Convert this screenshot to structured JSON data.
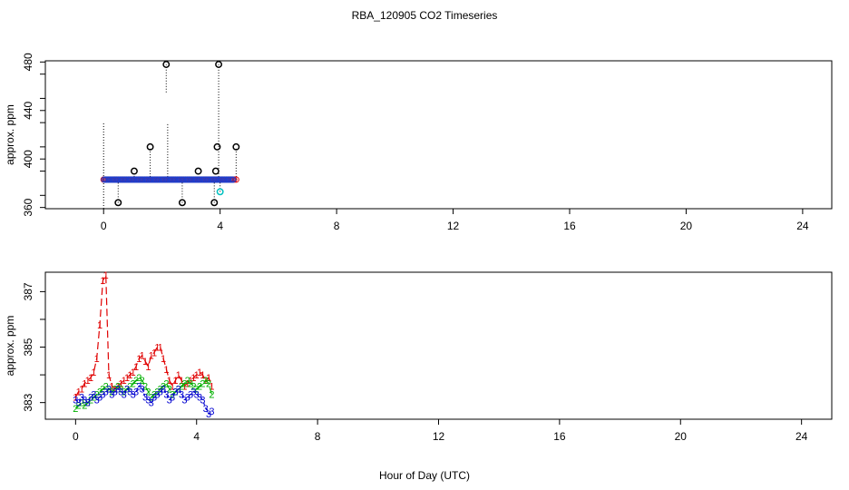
{
  "title": "RBA_120905  CO2 Timeseries",
  "xlabel": "Hour of Day (UTC)",
  "chart_data": [
    {
      "type": "scatter",
      "ylabel": "approx. ppm",
      "xlim": [
        -2,
        25
      ],
      "ylim": [
        359,
        481
      ],
      "xticks": [
        0,
        4,
        8,
        12,
        16,
        20,
        24
      ],
      "xtick_labels": [
        "0",
        "4",
        "8",
        "12",
        "16",
        "20",
        "24"
      ],
      "yticks": [
        360,
        400,
        440,
        480
      ],
      "ytick_labels": [
        "360",
        "400",
        "440",
        "480"
      ],
      "series": [
        {
          "color": "#000000",
          "marker": "open-circle",
          "points": [
            [
              0.5,
              364
            ],
            [
              1.05,
              390
            ],
            [
              1.6,
              410
            ],
            [
              2.15,
              478
            ],
            [
              2.7,
              364
            ],
            [
              3.25,
              390
            ],
            [
              3.8,
              364
            ],
            [
              3.85,
              390
            ],
            [
              3.9,
              410
            ],
            [
              3.95,
              478
            ],
            [
              4.55,
              410
            ]
          ]
        },
        {
          "color": "#00c0c0",
          "marker": "open-circle",
          "points": [
            [
              4.0,
              373
            ]
          ]
        }
      ],
      "spikes": [
        {
          "x": 0.0,
          "from": 359,
          "to": 430
        },
        {
          "x": 0.5,
          "from": 364,
          "to": 383
        },
        {
          "x": 1.05,
          "from": 383,
          "to": 390
        },
        {
          "x": 1.6,
          "from": 383,
          "to": 410
        },
        {
          "x": 2.15,
          "from": 455,
          "to": 478
        },
        {
          "x": 2.2,
          "from": 383,
          "to": 430
        },
        {
          "x": 2.7,
          "from": 364,
          "to": 383
        },
        {
          "x": 3.8,
          "from": 364,
          "to": 383
        },
        {
          "x": 3.95,
          "from": 383,
          "to": 478
        },
        {
          "x": 4.0,
          "from": 373,
          "to": 383
        },
        {
          "x": 4.55,
          "from": 383,
          "to": 410
        }
      ],
      "baseline_value": 383
    },
    {
      "type": "line",
      "ylabel": "approx. ppm",
      "xlim": [
        -1,
        25
      ],
      "ylim": [
        382.4,
        387.7
      ],
      "xticks": [
        0,
        4,
        8,
        12,
        16,
        20,
        24
      ],
      "xtick_labels": [
        "0",
        "4",
        "8",
        "12",
        "16",
        "20",
        "24"
      ],
      "yticks": [
        383,
        385,
        387
      ],
      "ytick_labels": [
        "383",
        "385",
        "387"
      ],
      "series": [
        {
          "symbol": "1",
          "color": "#e00000",
          "dash": "8 4",
          "x": [
            0.0,
            0.1,
            0.2,
            0.3,
            0.4,
            0.5,
            0.6,
            0.7,
            0.8,
            0.9,
            1.0,
            1.1,
            1.2,
            1.3,
            1.4,
            1.5,
            1.6,
            1.7,
            1.8,
            1.9,
            2.0,
            2.1,
            2.2,
            2.3,
            2.4,
            2.5,
            2.6,
            2.7,
            2.8,
            2.9,
            3.0,
            3.1,
            3.2,
            3.3,
            3.4,
            3.5,
            3.6,
            3.7,
            3.8,
            3.9,
            4.0,
            4.1,
            4.2,
            4.3,
            4.4,
            4.5
          ],
          "y": [
            383.2,
            383.4,
            383.5,
            383.7,
            383.8,
            383.9,
            384.1,
            384.6,
            385.8,
            387.4,
            387.6,
            384.0,
            383.6,
            383.5,
            383.6,
            383.7,
            383.8,
            383.9,
            384.0,
            384.1,
            384.3,
            384.6,
            384.7,
            384.5,
            384.3,
            384.7,
            384.8,
            385.0,
            385.0,
            384.6,
            384.2,
            383.8,
            383.6,
            383.8,
            384.0,
            383.8,
            383.6,
            383.7,
            383.8,
            383.9,
            384.0,
            384.1,
            384.0,
            383.8,
            383.9,
            383.6
          ]
        },
        {
          "symbol": "2",
          "color": "#00b000",
          "dash": "8 4",
          "x": [
            0.0,
            0.1,
            0.2,
            0.3,
            0.4,
            0.5,
            0.6,
            0.7,
            0.8,
            0.9,
            1.0,
            1.1,
            1.2,
            1.3,
            1.4,
            1.5,
            1.6,
            1.7,
            1.8,
            1.9,
            2.0,
            2.1,
            2.2,
            2.3,
            2.4,
            2.5,
            2.6,
            2.7,
            2.8,
            2.9,
            3.0,
            3.1,
            3.2,
            3.3,
            3.4,
            3.5,
            3.6,
            3.7,
            3.8,
            3.9,
            4.0,
            4.1,
            4.2,
            4.3,
            4.4,
            4.5
          ],
          "y": [
            382.8,
            382.9,
            383.0,
            382.9,
            383.0,
            383.1,
            383.2,
            383.3,
            383.4,
            383.5,
            383.6,
            383.5,
            383.4,
            383.5,
            383.6,
            383.5,
            383.4,
            383.5,
            383.6,
            383.7,
            383.8,
            383.9,
            383.8,
            383.6,
            383.4,
            383.2,
            383.3,
            383.4,
            383.5,
            383.6,
            383.7,
            383.5,
            383.3,
            383.4,
            383.5,
            383.6,
            383.7,
            383.8,
            383.7,
            383.6,
            383.5,
            383.6,
            383.7,
            383.8,
            383.7,
            383.3
          ]
        },
        {
          "symbol": "3",
          "color": "#0000d0",
          "dash": "3 3",
          "x": [
            0.0,
            0.1,
            0.2,
            0.3,
            0.4,
            0.5,
            0.6,
            0.7,
            0.8,
            0.9,
            1.0,
            1.1,
            1.2,
            1.3,
            1.4,
            1.5,
            1.6,
            1.7,
            1.8,
            1.9,
            2.0,
            2.1,
            2.2,
            2.3,
            2.4,
            2.5,
            2.6,
            2.7,
            2.8,
            2.9,
            3.0,
            3.1,
            3.2,
            3.3,
            3.4,
            3.5,
            3.6,
            3.7,
            3.8,
            3.9,
            4.0,
            4.1,
            4.2,
            4.3,
            4.4,
            4.5
          ],
          "y": [
            383.1,
            383.0,
            383.2,
            383.1,
            383.0,
            383.2,
            383.3,
            383.1,
            383.2,
            383.3,
            383.4,
            383.5,
            383.3,
            383.4,
            383.5,
            383.4,
            383.3,
            383.5,
            383.4,
            383.3,
            383.4,
            383.6,
            383.5,
            383.2,
            383.1,
            383.0,
            383.2,
            383.3,
            383.4,
            383.5,
            383.3,
            383.1,
            383.2,
            383.4,
            383.5,
            383.3,
            383.1,
            383.2,
            383.3,
            383.4,
            383.3,
            383.2,
            383.1,
            382.8,
            382.6,
            382.7
          ]
        }
      ]
    }
  ]
}
